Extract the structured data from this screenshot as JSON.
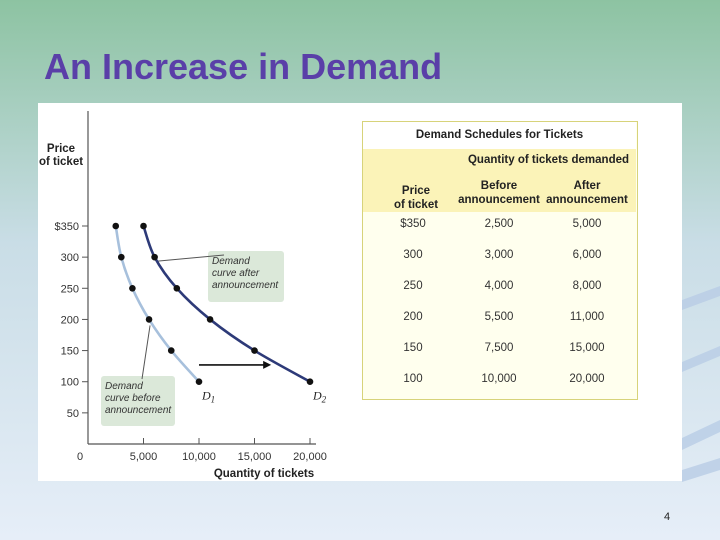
{
  "slide": {
    "title": "An Increase in Demand",
    "page_number": "4"
  },
  "colors": {
    "title": "#5a3fa8",
    "bg_top": "#8dc3a2",
    "bg_bottom": "#e6eef8",
    "curve_d1": "#a7c0dc",
    "curve_d2": "#2d3a78",
    "callout_fill": "#dbe8d9",
    "table_border": "#d7d37a",
    "table_header": "#fbf3b8"
  },
  "chart_data": {
    "type": "line",
    "xlabel": "Quantity of tickets",
    "ylabel_lines": [
      "Price",
      "of ticket"
    ],
    "xlim": [
      0,
      20000
    ],
    "ylim": [
      0,
      350
    ],
    "x_ticks": [
      {
        "value": 0,
        "label": "0"
      },
      {
        "value": 5000,
        "label": "5,000"
      },
      {
        "value": 10000,
        "label": "10,000"
      },
      {
        "value": 15000,
        "label": "15,000"
      },
      {
        "value": 20000,
        "label": "20,000"
      }
    ],
    "y_ticks": [
      {
        "value": 50,
        "label": "50"
      },
      {
        "value": 100,
        "label": "100"
      },
      {
        "value": 150,
        "label": "150"
      },
      {
        "value": 200,
        "label": "200"
      },
      {
        "value": 250,
        "label": "250"
      },
      {
        "value": 300,
        "label": "300"
      },
      {
        "value": 350,
        "label": "$350"
      }
    ],
    "series": [
      {
        "name": "D1",
        "label_main": "D",
        "label_sub": "1",
        "x": [
          2500,
          3000,
          4000,
          5500,
          7500,
          10000
        ],
        "y": [
          350,
          300,
          250,
          200,
          150,
          100
        ]
      },
      {
        "name": "D2",
        "label_main": "D",
        "label_sub": "2",
        "x": [
          5000,
          6000,
          8000,
          11000,
          15000,
          20000
        ],
        "y": [
          350,
          300,
          250,
          200,
          150,
          100
        ]
      }
    ],
    "annotations": {
      "after": {
        "lines": [
          "Demand",
          "curve after",
          "announcement"
        ],
        "points_to": [
          6000,
          300
        ]
      },
      "before": {
        "lines": [
          "Demand",
          "curve before",
          "announcement"
        ],
        "points_to": [
          5500,
          200
        ]
      },
      "shift_arrow": {
        "from": [
          10000,
          127
        ],
        "to": [
          16500,
          127
        ]
      }
    }
  },
  "schedule": {
    "title": "Demand Schedules for Tickets",
    "group_heading": "Quantity of tickets demanded",
    "columns": {
      "price": [
        "Price",
        "of ticket"
      ],
      "before": [
        "Before",
        "announcement"
      ],
      "after": [
        "After",
        "announcement"
      ]
    },
    "rows": [
      {
        "price": "$350",
        "before": "2,500",
        "after": "5,000"
      },
      {
        "price": "300",
        "before": "3,000",
        "after": "6,000"
      },
      {
        "price": "250",
        "before": "4,000",
        "after": "8,000"
      },
      {
        "price": "200",
        "before": "5,500",
        "after": "11,000"
      },
      {
        "price": "150",
        "before": "7,500",
        "after": "15,000"
      },
      {
        "price": "100",
        "before": "10,000",
        "after": "20,000"
      }
    ]
  }
}
